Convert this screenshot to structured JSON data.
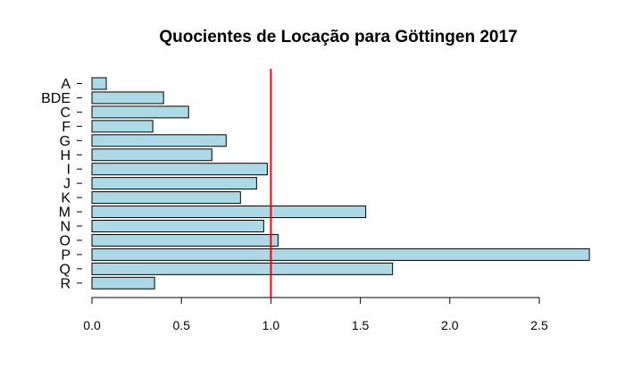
{
  "chart_data": {
    "type": "bar",
    "orientation": "horizontal",
    "title": "Quocientes de Locação para Göttingen 2017",
    "xlabel": "",
    "ylabel": "",
    "categories": [
      "A",
      "BDE",
      "C",
      "F",
      "G",
      "H",
      "I",
      "J",
      "K",
      "M",
      "N",
      "O",
      "P",
      "Q",
      "R"
    ],
    "values": [
      0.08,
      0.4,
      0.54,
      0.34,
      0.75,
      0.67,
      0.98,
      0.92,
      0.83,
      1.53,
      0.96,
      1.04,
      2.78,
      1.68,
      0.35
    ],
    "xlim": [
      0,
      2.78
    ],
    "xticks": [
      "0.0",
      "0.5",
      "1.0",
      "1.5",
      "2.0",
      "2.5"
    ],
    "reference_line": 1.0,
    "bar_color": "#add8e6",
    "bar_edge_color": "#000000",
    "reference_line_color": "#ff0000",
    "grid": false,
    "legend": "none"
  }
}
